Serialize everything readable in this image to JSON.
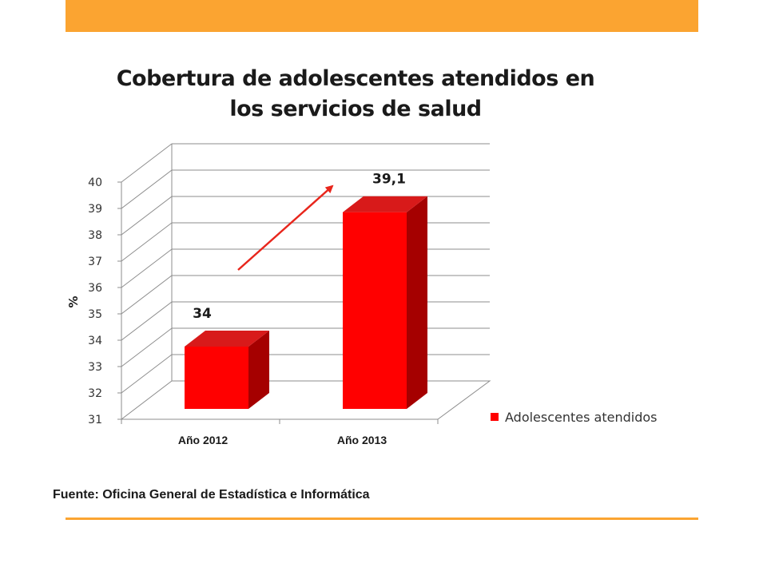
{
  "colors": {
    "accent": "#FBA431",
    "bar_front": "#FF0000",
    "bar_top": "#D81A1A",
    "bar_side": "#A50000",
    "arrow": "#E8261C",
    "grid": "#8C8C8C"
  },
  "chart_data": {
    "type": "bar",
    "title": "Cobertura de adolescentes atendidos en los servicios de salud",
    "xlabel": "",
    "ylabel": "%",
    "categories": [
      "Año 2012",
      "Año 2013"
    ],
    "series": [
      {
        "name": "Adolescentes atendidos",
        "values": [
          34,
          39.1
        ]
      }
    ],
    "data_labels": [
      "34",
      "39,1"
    ],
    "ylim": [
      31,
      40
    ],
    "yticks": [
      31,
      32,
      33,
      34,
      35,
      36,
      37,
      38,
      39,
      40
    ],
    "grid": true,
    "legend": "right",
    "style": "3d-column",
    "annotation": "arrow-up"
  },
  "footer": {
    "source": "Fuente: Oficina General de Estadística e Informática"
  }
}
